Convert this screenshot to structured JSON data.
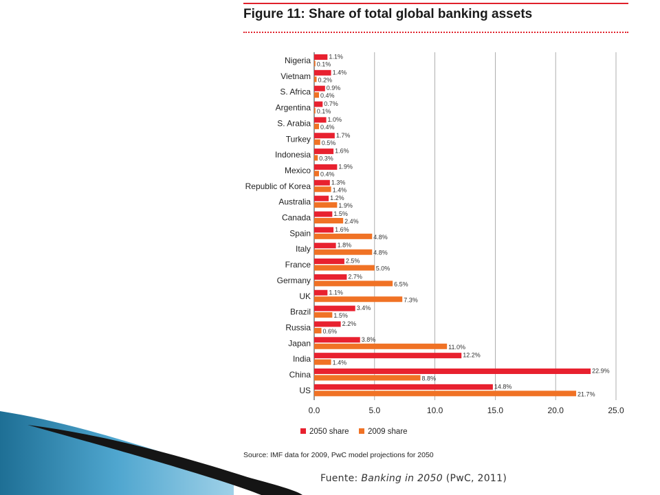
{
  "figure": {
    "title": "Figure 11: Share of total global banking assets",
    "source": "Source: IMF data for 2009, PwC model projections for 2050",
    "caption_prefix": "Fuente: ",
    "caption_italic": "Banking in 2050",
    "caption_suffix": " (PwC, 2011)"
  },
  "colors": {
    "s2050": "#e8212f",
    "s2009": "#f07225",
    "accent_rule": "#e0202a",
    "grid": "#9a9a9a"
  },
  "chart_data": {
    "type": "bar",
    "orientation": "horizontal",
    "categories": [
      "Nigeria",
      "Vietnam",
      "S. Africa",
      "Argentina",
      "S. Arabia",
      "Turkey",
      "Indonesia",
      "Mexico",
      "Republic of Korea",
      "Australia",
      "Canada",
      "Spain",
      "Italy",
      "France",
      "Germany",
      "UK",
      "Brazil",
      "Russia",
      "Japan",
      "India",
      "China",
      "US"
    ],
    "series": [
      {
        "name": "2050 share",
        "values": [
          1.1,
          1.4,
          0.9,
          0.7,
          1.0,
          1.7,
          1.6,
          1.9,
          1.3,
          1.2,
          1.5,
          1.6,
          1.8,
          2.5,
          2.7,
          1.1,
          3.4,
          2.2,
          3.8,
          12.2,
          22.9,
          14.8
        ],
        "labels": [
          "1.1%",
          "1.4%",
          "0.9%",
          "0.7%",
          "1.0%",
          "1.7%",
          "1.6%",
          "1.9%",
          "1.3%",
          "1.2%",
          "1.5%",
          "1.6%",
          "1.8%",
          "2.5%",
          "2.7%",
          "1.1%",
          "3.4%",
          "2.2%",
          "3.8%",
          "12.2%",
          "22.9%",
          "14.8%"
        ]
      },
      {
        "name": "2009 share",
        "values": [
          0.1,
          0.2,
          0.4,
          0.1,
          0.4,
          0.5,
          0.3,
          0.4,
          1.4,
          1.9,
          2.4,
          4.8,
          4.8,
          5.0,
          6.5,
          7.3,
          1.5,
          0.6,
          11.0,
          1.4,
          8.8,
          21.7
        ],
        "labels": [
          "0.1%",
          "0.2%",
          "0.4%",
          "0.1%",
          "0.4%",
          "0.5%",
          "0.3%",
          "0.4%",
          "1.4%",
          "1.9%",
          "2.4%",
          "4.8%",
          "4.8%",
          "5.0%",
          "6.5%",
          "7.3%",
          "1.5%",
          "0.6%",
          "11.0%",
          "1.4%",
          "8.8%",
          "21.7%"
        ]
      }
    ],
    "xlim": [
      0,
      25
    ],
    "xticks": [
      "0.0",
      "5.0",
      "10.0",
      "15.0",
      "20.0",
      "25.0"
    ],
    "grid": true,
    "legend": "bottom"
  }
}
